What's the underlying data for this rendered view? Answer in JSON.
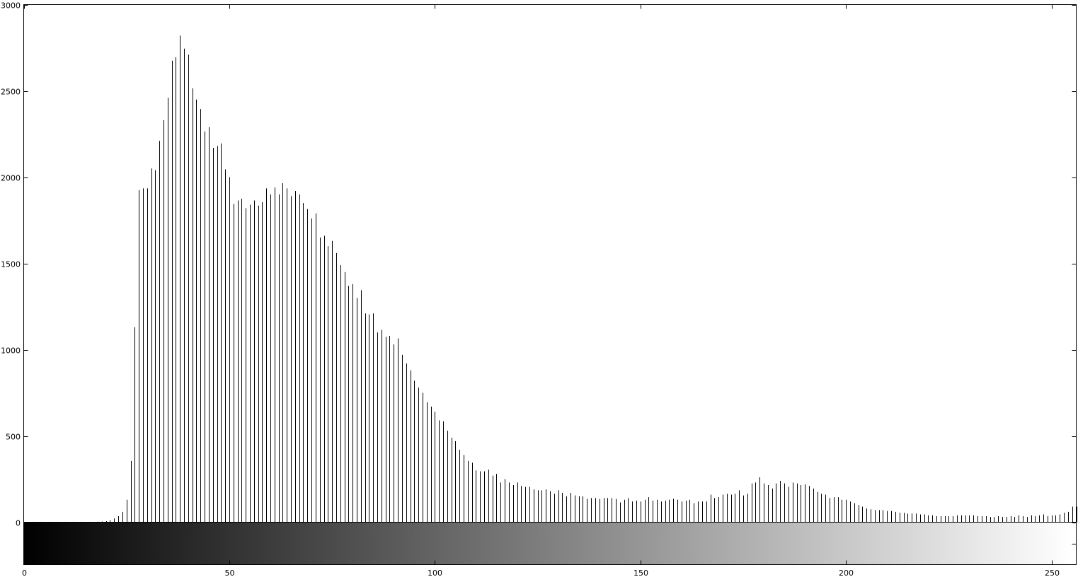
{
  "chart_data": {
    "type": "bar",
    "title": "",
    "xlabel": "",
    "ylabel": "",
    "xlim": [
      0,
      256
    ],
    "ylim": [
      0,
      3000
    ],
    "grid": false,
    "colorbar": "grayscale gradient from black (0) to white (255) below the x-axis",
    "x_ticks": [
      0,
      50,
      100,
      150,
      200,
      250
    ],
    "y_ticks": [
      0,
      500,
      1000,
      1500,
      2000,
      2500,
      3000
    ],
    "x_tick_labels": [
      "0",
      "50",
      "100",
      "150",
      "200",
      "250"
    ],
    "y_tick_labels": [
      "0",
      "500",
      "1000",
      "1500",
      "2000",
      "2500",
      "3000"
    ],
    "values": [
      0,
      0,
      0,
      0,
      0,
      0,
      0,
      0,
      0,
      0,
      0,
      0,
      0,
      0,
      0,
      2,
      2,
      2,
      3,
      4,
      6,
      12,
      22,
      35,
      60,
      130,
      355,
      1130,
      1925,
      1935,
      1935,
      2050,
      2040,
      2210,
      2330,
      2460,
      2675,
      2695,
      2820,
      2745,
      2710,
      2515,
      2450,
      2395,
      2265,
      2290,
      2170,
      2180,
      2195,
      2045,
      2000,
      1845,
      1865,
      1875,
      1820,
      1840,
      1865,
      1835,
      1855,
      1935,
      1900,
      1940,
      1900,
      1965,
      1935,
      1890,
      1920,
      1900,
      1850,
      1815,
      1760,
      1790,
      1650,
      1660,
      1600,
      1630,
      1560,
      1490,
      1450,
      1370,
      1380,
      1300,
      1345,
      1210,
      1205,
      1210,
      1100,
      1115,
      1075,
      1080,
      1030,
      1065,
      970,
      920,
      880,
      820,
      780,
      750,
      695,
      670,
      640,
      590,
      585,
      530,
      490,
      470,
      420,
      390,
      355,
      345,
      300,
      295,
      295,
      305,
      270,
      280,
      230,
      250,
      230,
      215,
      230,
      210,
      205,
      205,
      190,
      185,
      185,
      190,
      180,
      165,
      185,
      170,
      150,
      170,
      155,
      150,
      150,
      135,
      140,
      140,
      135,
      140,
      140,
      140,
      135,
      115,
      130,
      140,
      120,
      125,
      120,
      130,
      145,
      125,
      130,
      120,
      125,
      130,
      135,
      130,
      120,
      125,
      130,
      110,
      120,
      120,
      120,
      160,
      140,
      145,
      160,
      165,
      160,
      165,
      185,
      155,
      165,
      225,
      230,
      260,
      225,
      215,
      195,
      225,
      240,
      225,
      205,
      230,
      225,
      215,
      220,
      210,
      195,
      175,
      165,
      160,
      140,
      145,
      145,
      130,
      130,
      120,
      110,
      100,
      90,
      80,
      75,
      70,
      70,
      70,
      65,
      65,
      60,
      55,
      55,
      50,
      50,
      50,
      45,
      45,
      40,
      40,
      35,
      35,
      35,
      35,
      35,
      40,
      40,
      40,
      40,
      40,
      35,
      35,
      35,
      30,
      30,
      35,
      30,
      30,
      35,
      30,
      40,
      35,
      30,
      40,
      35,
      40,
      45,
      35,
      40,
      40,
      45,
      55,
      60,
      90,
      90,
      70
    ]
  }
}
